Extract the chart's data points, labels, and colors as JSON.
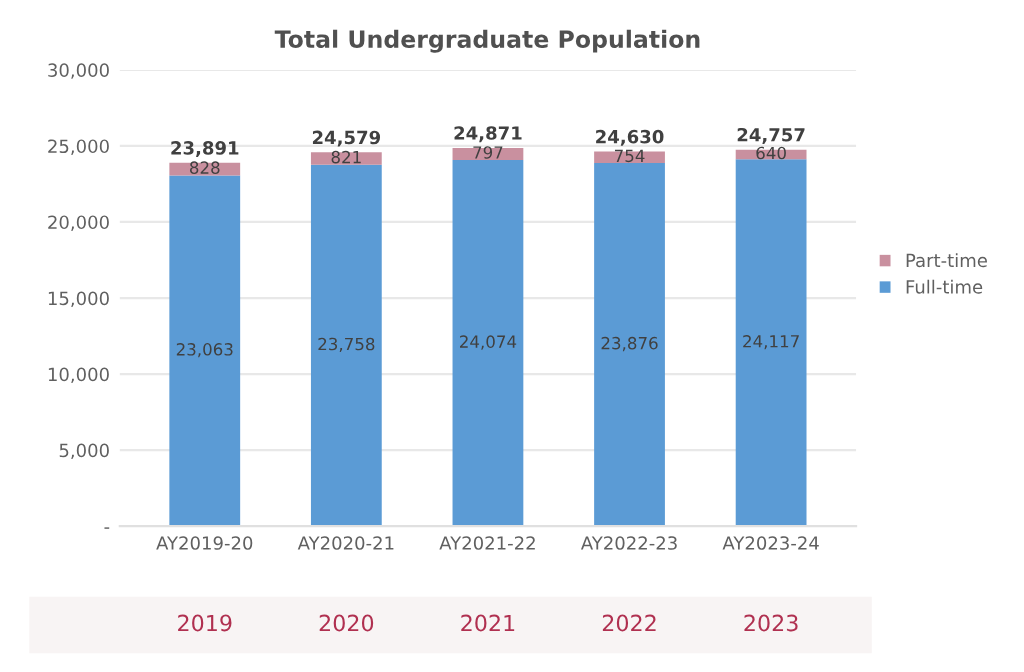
{
  "chart_data": {
    "type": "bar",
    "title": "Total Undergraduate Population",
    "categories": [
      "AY2019-20",
      "AY2020-21",
      "AY2021-22",
      "AY2022-23",
      "AY2023-24"
    ],
    "series": [
      {
        "name": "Full-time",
        "color": "#5b9bd5",
        "values": [
          23063,
          23758,
          24074,
          23876,
          24117
        ],
        "value_labels": [
          "23,063",
          "23,758",
          "24,074",
          "23,876",
          "24,117"
        ]
      },
      {
        "name": "Part-time",
        "color": "#c9909f",
        "values": [
          828,
          821,
          797,
          754,
          640
        ],
        "value_labels": [
          "828",
          "821",
          "797",
          "754",
          "640"
        ]
      }
    ],
    "stacked": true,
    "totals": [
      "23,891",
      "24,579",
      "24,871",
      "24,630",
      "24,757"
    ],
    "ylim": [
      0,
      30000
    ],
    "yticks": [
      {
        "value": 0,
        "label": "-"
      },
      {
        "value": 5000,
        "label": "5,000"
      },
      {
        "value": 10000,
        "label": "10,000"
      },
      {
        "value": 15000,
        "label": "15,000"
      },
      {
        "value": 20000,
        "label": "20,000"
      },
      {
        "value": 25000,
        "label": "25,000"
      },
      {
        "value": 30000,
        "label": "30,000"
      }
    ],
    "grid": "y",
    "legend": "right",
    "annotations": [
      "2019",
      "2020",
      "2021",
      "2022",
      "2023"
    ]
  }
}
